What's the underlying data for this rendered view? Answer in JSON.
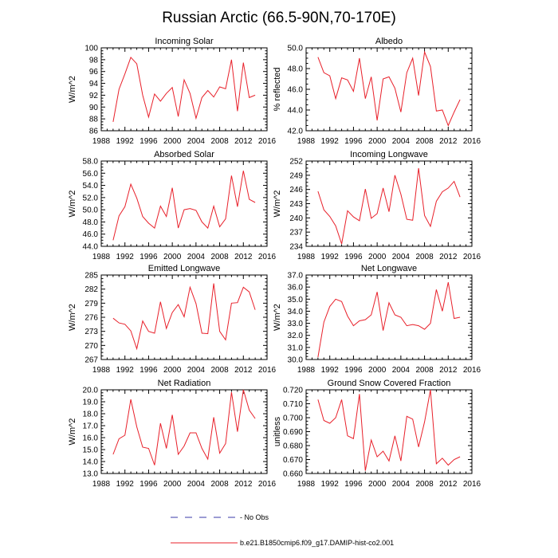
{
  "figure": {
    "title": "Russian Arctic (66.5-90N,70-170E)",
    "legend": [
      {
        "label": "- No Obs",
        "style": "dashed",
        "color": "#3a3aa8"
      },
      {
        "label": "b.e21.B1850cmip6.f09_g17.DAMIP-hist-co2.001",
        "style": "solid",
        "color": "#e8202a"
      }
    ]
  },
  "chart_data": [
    {
      "type": "line",
      "title": "Incoming Solar",
      "ylabel": "W/m^2",
      "xlim": [
        1988,
        2016
      ],
      "xticks": [
        "1988",
        "1992",
        "1996",
        "2000",
        "2004",
        "2008",
        "2012",
        "2016"
      ],
      "ylim": [
        86,
        100
      ],
      "yticks": [
        "86",
        "88",
        "90",
        "92",
        "94",
        "96",
        "98",
        "100"
      ],
      "series": [
        {
          "color": "#e8202a",
          "x": [
            1990,
            1991,
            1992,
            1993,
            1994,
            1995,
            1996,
            1997,
            1998,
            1999,
            2000,
            2001,
            2002,
            2003,
            2004,
            2005,
            2006,
            2007,
            2008,
            2009,
            2010,
            2011,
            2012,
            2013,
            2014
          ],
          "y": [
            87.5,
            93.0,
            95.6,
            98.4,
            97.3,
            92.0,
            88.3,
            92.2,
            91.0,
            92.3,
            93.3,
            88.4,
            94.6,
            92.3,
            88.1,
            91.6,
            92.8,
            91.7,
            93.4,
            93.1,
            98.0,
            89.3,
            97.5,
            91.6,
            92.0
          ]
        }
      ]
    },
    {
      "type": "line",
      "title": "Albedo",
      "ylabel": "% reflected",
      "xlim": [
        1988,
        2016
      ],
      "xticks": [
        "1988",
        "1992",
        "1996",
        "2000",
        "2004",
        "2008",
        "2012",
        "2016"
      ],
      "ylim": [
        42,
        50
      ],
      "yticks": [
        "42.0",
        "44.0",
        "46.0",
        "48.0",
        "50.0"
      ],
      "series": [
        {
          "color": "#e8202a",
          "x": [
            1990,
            1991,
            1992,
            1993,
            1994,
            1995,
            1996,
            1997,
            1998,
            1999,
            2000,
            2001,
            2002,
            2003,
            2004,
            2005,
            2006,
            2007,
            2008,
            2009,
            2010,
            2011,
            2012,
            2013,
            2014
          ],
          "y": [
            49.1,
            47.6,
            47.3,
            45.1,
            47.1,
            46.9,
            45.8,
            49.0,
            45.1,
            47.2,
            43.0,
            47.0,
            47.2,
            46.1,
            43.8,
            47.6,
            49.0,
            45.4,
            49.6,
            48.2,
            43.9,
            44.0,
            42.5,
            43.8,
            45.0
          ]
        }
      ]
    },
    {
      "type": "line",
      "title": "Absorbed Solar",
      "ylabel": "W/m^2",
      "xlim": [
        1988,
        2016
      ],
      "xticks": [
        "1988",
        "1992",
        "1996",
        "2000",
        "2004",
        "2008",
        "2012",
        "2016"
      ],
      "ylim": [
        44,
        58
      ],
      "yticks": [
        "44.0",
        "46.0",
        "48.0",
        "50.0",
        "52.0",
        "54.0",
        "56.0",
        "58.0"
      ],
      "series": [
        {
          "color": "#e8202a",
          "x": [
            1990,
            1991,
            1992,
            1993,
            1994,
            1995,
            1996,
            1997,
            1998,
            1999,
            2000,
            2001,
            2002,
            2003,
            2004,
            2005,
            2006,
            2007,
            2008,
            2009,
            2010,
            2011,
            2012,
            2013,
            2014
          ],
          "y": [
            45.0,
            49.0,
            50.5,
            54.2,
            51.9,
            48.9,
            47.8,
            47.0,
            50.6,
            48.9,
            53.6,
            47.0,
            50.0,
            50.2,
            49.9,
            48.0,
            47.0,
            50.6,
            47.2,
            48.5,
            55.6,
            50.5,
            56.4,
            51.7,
            51.2
          ]
        }
      ]
    },
    {
      "type": "line",
      "title": "Incoming Longwave",
      "ylabel": "W/m^2",
      "xlim": [
        1988,
        2016
      ],
      "xticks": [
        "1988",
        "1992",
        "1996",
        "2000",
        "2004",
        "2008",
        "2012",
        "2016"
      ],
      "ylim": [
        234,
        252
      ],
      "yticks": [
        "234",
        "237",
        "240",
        "243",
        "246",
        "249",
        "252"
      ],
      "series": [
        {
          "color": "#e8202a",
          "x": [
            1990,
            1991,
            1992,
            1993,
            1994,
            1995,
            1996,
            1997,
            1998,
            1999,
            2000,
            2001,
            2002,
            2003,
            2004,
            2005,
            2006,
            2007,
            2008,
            2009,
            2010,
            2011,
            2012,
            2013,
            2014
          ],
          "y": [
            245.6,
            241.7,
            240.3,
            238.3,
            234.5,
            241.5,
            240.2,
            239.4,
            246.1,
            239.9,
            240.9,
            246.3,
            241.3,
            249.0,
            245.0,
            239.7,
            239.5,
            250.5,
            240.5,
            238.2,
            243.5,
            245.5,
            246.3,
            247.7,
            244.4
          ]
        }
      ]
    },
    {
      "type": "line",
      "title": "Emitted Longwave",
      "ylabel": "W/m^2",
      "xlim": [
        1988,
        2016
      ],
      "xticks": [
        "1988",
        "1992",
        "1996",
        "2000",
        "2004",
        "2008",
        "2012",
        "2016"
      ],
      "ylim": [
        267,
        285
      ],
      "yticks": [
        "267",
        "270",
        "273",
        "276",
        "279",
        "282",
        "285"
      ],
      "series": [
        {
          "color": "#e8202a",
          "x": [
            1990,
            1991,
            1992,
            1993,
            1994,
            1995,
            1996,
            1997,
            1998,
            1999,
            2000,
            2001,
            2002,
            2003,
            2004,
            2005,
            2006,
            2007,
            2008,
            2009,
            2010,
            2011,
            2012,
            2013,
            2014
          ],
          "y": [
            275.8,
            274.8,
            274.5,
            273.1,
            269.3,
            275.2,
            273.0,
            272.6,
            279.3,
            273.6,
            277.0,
            278.7,
            276.1,
            282.4,
            278.9,
            272.6,
            272.5,
            283.2,
            273.0,
            271.2,
            279.0,
            279.1,
            282.4,
            281.4,
            277.6
          ]
        }
      ]
    },
    {
      "type": "line",
      "title": "Net Longwave",
      "ylabel": "W/m^2",
      "xlim": [
        1988,
        2016
      ],
      "xticks": [
        "1988",
        "1992",
        "1996",
        "2000",
        "2004",
        "2008",
        "2012",
        "2016"
      ],
      "ylim": [
        30,
        37
      ],
      "yticks": [
        "30.0",
        "31.0",
        "32.0",
        "33.0",
        "34.0",
        "35.0",
        "36.0",
        "37.0"
      ],
      "series": [
        {
          "color": "#e8202a",
          "x": [
            1990,
            1991,
            1992,
            1993,
            1994,
            1995,
            1996,
            1997,
            1998,
            1999,
            2000,
            2001,
            2002,
            2003,
            2004,
            2005,
            2006,
            2007,
            2008,
            2009,
            2010,
            2011,
            2012,
            2013,
            2014
          ],
          "y": [
            30.2,
            33.1,
            34.4,
            35.0,
            34.8,
            33.6,
            32.8,
            33.2,
            33.3,
            33.7,
            35.6,
            32.4,
            34.7,
            33.7,
            33.5,
            32.8,
            32.9,
            32.8,
            32.5,
            33.0,
            35.8,
            34.0,
            36.4,
            33.4,
            33.5
          ]
        }
      ]
    },
    {
      "type": "line",
      "title": "Net Radiation",
      "ylabel": "W/m^2",
      "xlim": [
        1988,
        2016
      ],
      "xticks": [
        "1988",
        "1992",
        "1996",
        "2000",
        "2004",
        "2008",
        "2012",
        "2016"
      ],
      "ylim": [
        13,
        20
      ],
      "yticks": [
        "13.0",
        "14.0",
        "15.0",
        "16.0",
        "17.0",
        "18.0",
        "19.0",
        "20.0"
      ],
      "series": [
        {
          "color": "#e8202a",
          "x": [
            1990,
            1991,
            1992,
            1993,
            1994,
            1995,
            1996,
            1997,
            1998,
            1999,
            2000,
            2001,
            2002,
            2003,
            2004,
            2005,
            2006,
            2007,
            2008,
            2009,
            2010,
            2011,
            2012,
            2013,
            2014
          ],
          "y": [
            14.6,
            15.9,
            16.2,
            19.2,
            16.9,
            15.2,
            15.1,
            13.7,
            17.2,
            15.1,
            17.9,
            14.6,
            15.3,
            16.4,
            16.4,
            15.1,
            14.2,
            17.7,
            14.7,
            15.5,
            19.8,
            16.5,
            20.0,
            18.3,
            17.6
          ]
        }
      ]
    },
    {
      "type": "line",
      "title": "Ground Snow Covered Fraction",
      "ylabel": "unitless",
      "xlim": [
        1988,
        2016
      ],
      "xticks": [
        "1988",
        "1992",
        "1996",
        "2000",
        "2004",
        "2008",
        "2012",
        "2016"
      ],
      "ylim": [
        0.66,
        0.72
      ],
      "yticks": [
        "0.660",
        "0.670",
        "0.680",
        "0.690",
        "0.700",
        "0.710",
        "0.720"
      ],
      "series": [
        {
          "color": "#e8202a",
          "x": [
            1990,
            1991,
            1992,
            1993,
            1994,
            1995,
            1996,
            1997,
            1998,
            1999,
            2000,
            2001,
            2002,
            2003,
            2004,
            2005,
            2006,
            2007,
            2008,
            2009,
            2010,
            2011,
            2012,
            2013,
            2014
          ],
          "y": [
            0.713,
            0.698,
            0.696,
            0.7,
            0.713,
            0.687,
            0.685,
            0.717,
            0.662,
            0.684,
            0.672,
            0.676,
            0.669,
            0.687,
            0.669,
            0.701,
            0.699,
            0.679,
            0.697,
            0.72,
            0.667,
            0.671,
            0.666,
            0.67,
            0.672
          ]
        }
      ]
    }
  ]
}
